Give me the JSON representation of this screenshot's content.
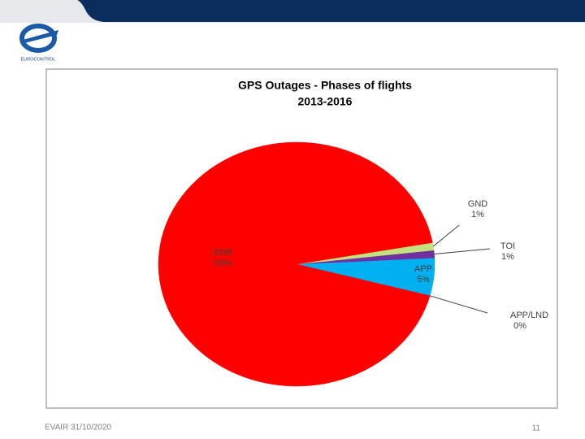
{
  "logo_text": "EUROCONTROL",
  "footer": {
    "left": "EVAIR 31/10/2020",
    "page": "11"
  },
  "chart_data": {
    "type": "pie",
    "title": "GPS Outages - Phases of flights",
    "subtitle": "2013-2016",
    "categories": [
      "APP/LND",
      "APP",
      "TOI",
      "GND",
      "ENR"
    ],
    "values": [
      0,
      5,
      1,
      1,
      93
    ],
    "value_labels": [
      "0%",
      "5%",
      "1%",
      "1%",
      "93%"
    ],
    "colors": [
      "#92d050",
      "#00b0f0",
      "#7030a0",
      "#c4e17f",
      "#ff0000"
    ]
  }
}
